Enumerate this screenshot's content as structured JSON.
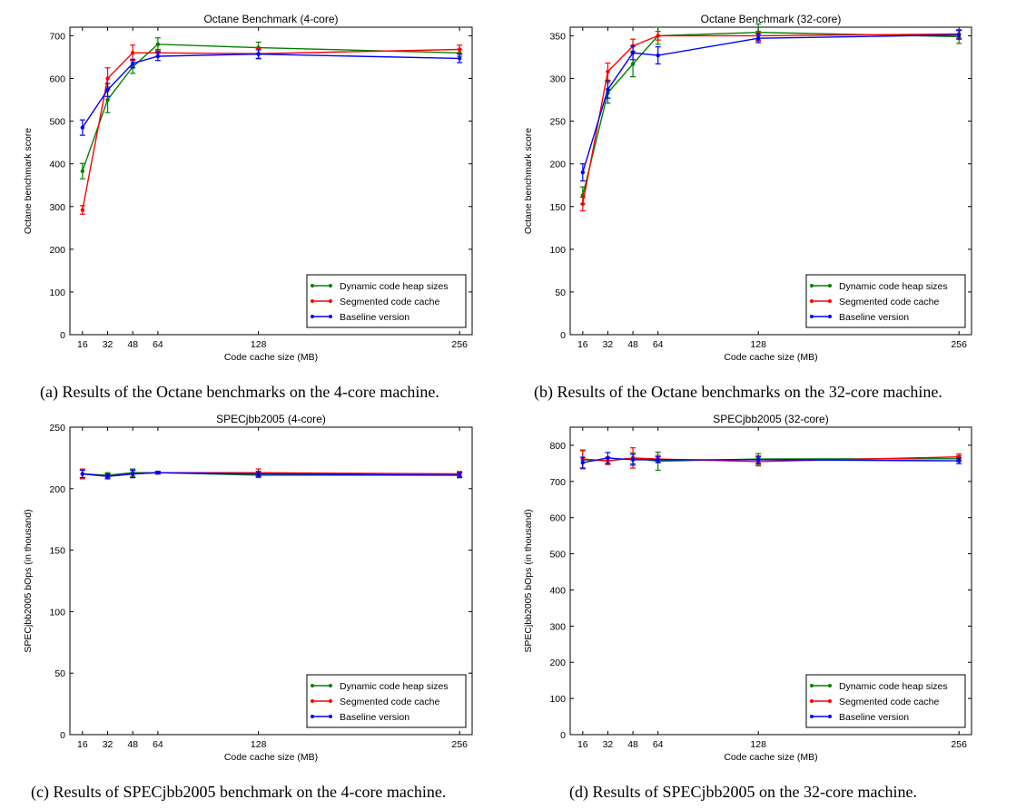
{
  "chart_data": [
    {
      "type": "line",
      "title": "Octane Benchmark (4-core)",
      "xlabel": "Code cache size (MB)",
      "ylabel": "Octane benchmark score",
      "x": [
        16,
        32,
        48,
        64,
        128,
        256
      ],
      "x_ticks": [
        16,
        32,
        48,
        64,
        128,
        256
      ],
      "xlim": [
        8,
        264
      ],
      "ylim": [
        0,
        720
      ],
      "y_ticks": [
        0,
        100,
        200,
        300,
        400,
        500,
        600,
        700
      ],
      "legend_position": "bottom-right",
      "caption": "(a) Results of the Octane benchmarks on the 4-core machine.",
      "series": [
        {
          "name": "Dynamic code heap sizes",
          "color": "#008000",
          "values": [
            383,
            550,
            627,
            680,
            672,
            660
          ],
          "errors": [
            18,
            30,
            15,
            15,
            13,
            8
          ]
        },
        {
          "name": "Segmented code cache",
          "color": "#ff0000",
          "values": [
            292,
            600,
            660,
            660,
            658,
            668
          ],
          "errors": [
            10,
            25,
            18,
            8,
            12,
            10
          ]
        },
        {
          "name": "Baseline version",
          "color": "#0000ff",
          "values": [
            485,
            573,
            635,
            652,
            657,
            647
          ],
          "errors": [
            18,
            15,
            10,
            10,
            10,
            10
          ]
        }
      ]
    },
    {
      "type": "line",
      "title": "Octane Benchmark (32-core)",
      "xlabel": "Code cache size (MB)",
      "ylabel": "Octane benchmark score",
      "x": [
        16,
        32,
        48,
        64,
        128,
        256
      ],
      "x_ticks": [
        16,
        32,
        48,
        64,
        128,
        256
      ],
      "xlim": [
        8,
        264
      ],
      "ylim": [
        0,
        360
      ],
      "y_ticks": [
        0,
        50,
        100,
        150,
        200,
        250,
        300,
        350
      ],
      "legend_position": "bottom-right",
      "caption": "(b) Results of the Octane benchmarks on the 32-core machine.",
      "series": [
        {
          "name": "Dynamic code heap sizes",
          "color": "#008000",
          "values": [
            163,
            283,
            317,
            350,
            354,
            349
          ],
          "errors": [
            10,
            12,
            15,
            10,
            10,
            8
          ]
        },
        {
          "name": "Segmented code cache",
          "color": "#ff0000",
          "values": [
            153,
            308,
            338,
            350,
            350,
            352
          ],
          "errors": [
            8,
            10,
            8,
            5,
            5,
            5
          ]
        },
        {
          "name": "Baseline version",
          "color": "#0000ff",
          "values": [
            190,
            287,
            330,
            327,
            347,
            351
          ],
          "errors": [
            10,
            10,
            8,
            10,
            5,
            5
          ]
        }
      ]
    },
    {
      "type": "line",
      "title": "SPECjbb2005 (4-core)",
      "xlabel": "Code cache size (MB)",
      "ylabel": "SPECjbb2005 bOps (in thousand)",
      "x": [
        16,
        32,
        48,
        64,
        128,
        256
      ],
      "x_ticks": [
        16,
        32,
        48,
        64,
        128,
        256
      ],
      "xlim": [
        8,
        264
      ],
      "ylim": [
        0,
        250
      ],
      "y_ticks": [
        0,
        50,
        100,
        150,
        200,
        250
      ],
      "legend_position": "bottom-right",
      "caption": "(c) Results of SPECjbb2005 benchmark on the 4-core machine.",
      "series": [
        {
          "name": "Dynamic code heap sizes",
          "color": "#008000",
          "values": [
            212,
            211,
            213,
            213,
            211,
            211
          ],
          "errors": [
            3,
            2,
            3,
            1,
            2,
            2
          ]
        },
        {
          "name": "Segmented code cache",
          "color": "#ff0000",
          "values": [
            212,
            210,
            212,
            213,
            213,
            212
          ],
          "errors": [
            4,
            2,
            3,
            1,
            3,
            2
          ]
        },
        {
          "name": "Baseline version",
          "color": "#0000ff",
          "values": [
            212,
            210,
            212,
            213,
            212,
            211
          ],
          "errors": [
            3,
            2,
            3,
            1,
            2,
            2
          ]
        }
      ]
    },
    {
      "type": "line",
      "title": "SPECjbb2005 (32-core)",
      "xlabel": "Code cache size (MB)",
      "ylabel": "SPECjbb2005 bOps (in thousand)",
      "x": [
        16,
        32,
        48,
        64,
        128,
        256
      ],
      "x_ticks": [
        16,
        32,
        48,
        64,
        128,
        256
      ],
      "xlim": [
        8,
        264
      ],
      "ylim": [
        0,
        850
      ],
      "y_ticks": [
        0,
        100,
        200,
        300,
        400,
        500,
        600,
        700,
        800
      ],
      "legend_position": "bottom-right",
      "caption": "(d) Results of SPECjbb2005 on the 32-core machine.",
      "series": [
        {
          "name": "Dynamic code heap sizes",
          "color": "#008000",
          "values": [
            760,
            757,
            764,
            756,
            762,
            763
          ],
          "errors": [
            25,
            10,
            15,
            25,
            15,
            8
          ]
        },
        {
          "name": "Segmented code cache",
          "color": "#ff0000",
          "values": [
            762,
            757,
            765,
            762,
            755,
            768
          ],
          "errors": [
            25,
            10,
            28,
            10,
            12,
            8
          ]
        },
        {
          "name": "Baseline version",
          "color": "#0000ff",
          "values": [
            752,
            765,
            760,
            760,
            760,
            757
          ],
          "errors": [
            15,
            15,
            15,
            8,
            10,
            8
          ]
        }
      ]
    }
  ]
}
